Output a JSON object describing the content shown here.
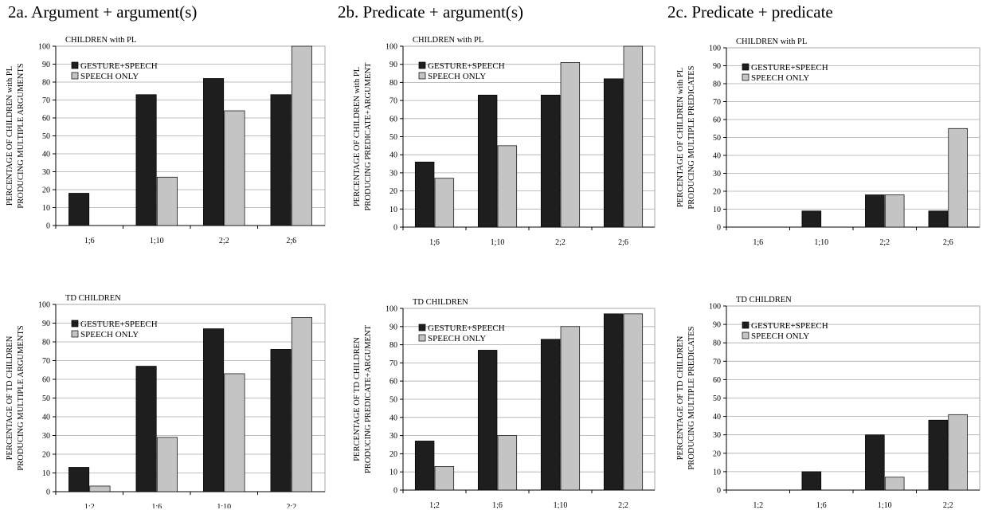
{
  "headings": {
    "a": "2a. Argument + argument(s)",
    "b": "2b. Predicate + argument(s)",
    "c": "2c. Predicate + predicate"
  },
  "colors": {
    "gesture": "#1e1e1e",
    "speech": "#c4c4c4",
    "grid": "#aaaaaa",
    "axis": "#000000"
  },
  "chart_data": [
    {
      "type": "bar",
      "title": "CHILDREN with PL",
      "ylabel": [
        "PERCENTAGE OF CHILDREN with PL",
        "PRODUCING  MULTIPLE ARGUMENTS"
      ],
      "ylim": [
        0,
        100
      ],
      "yticks": [
        0,
        10,
        20,
        30,
        40,
        50,
        60,
        70,
        80,
        90,
        100
      ],
      "categories": [
        "1;6",
        "1;10",
        "2;2",
        "2;6"
      ],
      "series": [
        {
          "name": "GESTURE+SPEECH",
          "values": [
            18,
            73,
            82,
            73
          ]
        },
        {
          "name": "SPEECH ONLY",
          "values": [
            0,
            27,
            64,
            100
          ]
        }
      ],
      "grid": true,
      "legend": "top-left"
    },
    {
      "type": "bar",
      "title": "CHILDREN with PL",
      "ylabel": [
        "PERCENTAGE OF CHILDREN with PL",
        "PRODUCING PREDICATE+ARGUMENT"
      ],
      "ylim": [
        0,
        100
      ],
      "yticks": [
        0,
        10,
        20,
        30,
        40,
        50,
        60,
        70,
        80,
        90,
        100
      ],
      "categories": [
        "1;6",
        "1;10",
        "2;2",
        "2;6"
      ],
      "series": [
        {
          "name": "GESTURE+SPEECH",
          "values": [
            36,
            73,
            73,
            82
          ]
        },
        {
          "name": "SPEECH ONLY",
          "values": [
            27,
            45,
            91,
            100
          ]
        }
      ],
      "grid": true,
      "legend": "top-left"
    },
    {
      "type": "bar",
      "title": "CHILDREN with PL",
      "ylabel": [
        "PERCENTAGE OF CHILDREN with PL",
        "PRODUCING MULTIPLE PREDICATES"
      ],
      "ylim": [
        0,
        100
      ],
      "yticks": [
        0,
        10,
        20,
        30,
        40,
        50,
        60,
        70,
        80,
        90,
        100
      ],
      "categories": [
        "1;6",
        "1;10",
        "2;2",
        "2;6"
      ],
      "series": [
        {
          "name": "GESTURE+SPEECH",
          "values": [
            0,
            9,
            18,
            9
          ]
        },
        {
          "name": "SPEECH ONLY",
          "values": [
            0,
            0,
            18,
            55
          ]
        }
      ],
      "grid": true,
      "legend": "top-left"
    },
    {
      "type": "bar",
      "title": "TD CHILDREN",
      "ylabel": [
        "PERCENTAGE OF TD CHILDREN",
        "PRODUCING  MULTIPLE ARGUMENTS"
      ],
      "ylim": [
        0,
        100
      ],
      "yticks": [
        0,
        10,
        20,
        30,
        40,
        50,
        60,
        70,
        80,
        90,
        100
      ],
      "categories": [
        "1;2",
        "1;6",
        "1;10",
        "2;2"
      ],
      "series": [
        {
          "name": "GESTURE+SPEECH",
          "values": [
            13,
            67,
            87,
            76
          ]
        },
        {
          "name": "SPEECH ONLY",
          "values": [
            3,
            29,
            63,
            93
          ]
        }
      ],
      "grid": true,
      "legend": "top-left"
    },
    {
      "type": "bar",
      "title": "TD CHILDREN",
      "ylabel": [
        "PERCENTAGE OF TD CHILDREN",
        "PRODUCING  PREDICATE+ARGUMENT"
      ],
      "ylim": [
        0,
        100
      ],
      "yticks": [
        0,
        10,
        20,
        30,
        40,
        50,
        60,
        70,
        80,
        90,
        100
      ],
      "categories": [
        "1;2",
        "1;6",
        "1;10",
        "2;2"
      ],
      "series": [
        {
          "name": "GESTURE+SPEECH",
          "values": [
            27,
            77,
            83,
            97
          ]
        },
        {
          "name": "SPEECH ONLY",
          "values": [
            13,
            30,
            90,
            97
          ]
        }
      ],
      "grid": true,
      "legend": "top-left"
    },
    {
      "type": "bar",
      "title": "TD CHILDREN",
      "ylabel": [
        "PERCENTAGE OF TD CHILDREN",
        "PRODUCING  MULTIPLE PREDICATES"
      ],
      "ylim": [
        0,
        100
      ],
      "yticks": [
        0,
        10,
        20,
        30,
        40,
        50,
        60,
        70,
        80,
        90,
        100
      ],
      "categories": [
        "1;2",
        "1;6",
        "1;10",
        "2;2"
      ],
      "series": [
        {
          "name": "GESTURE+SPEECH",
          "values": [
            0,
            10,
            30,
            38
          ]
        },
        {
          "name": "SPEECH ONLY",
          "values": [
            0,
            0,
            7,
            41
          ]
        }
      ],
      "grid": true,
      "legend": "top-left"
    }
  ]
}
